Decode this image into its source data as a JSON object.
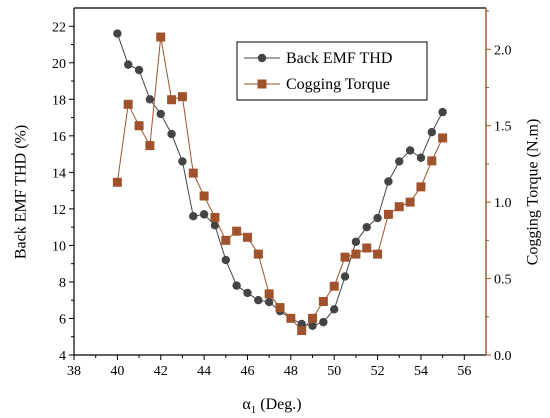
{
  "chart_data": {
    "type": "line",
    "xlabel": "α1 (Deg.)",
    "xlabel_main": "α",
    "xlabel_sub": "1",
    "xlabel_rest": " (Deg.)",
    "ylabel_left": "Back EMF THD (%)",
    "ylabel_right": "Cogging Torque  (N.m)",
    "xlim": [
      38,
      57
    ],
    "xticks": [
      "38",
      "40",
      "42",
      "44",
      "46",
      "48",
      "50",
      "52",
      "54",
      "56"
    ],
    "ylim_left": [
      4,
      23
    ],
    "yticks_left": [
      "4",
      "6",
      "8",
      "10",
      "12",
      "14",
      "16",
      "18",
      "20",
      "22"
    ],
    "ylim_right": [
      0,
      2.27
    ],
    "yticks_right": [
      "0.0",
      "0.5",
      "1.0",
      "1.5",
      "2.0"
    ],
    "legend_position": "top-right",
    "colors": {
      "left_axis": "#000000",
      "right_axis": "#a0522d"
    },
    "x": [
      40,
      40.5,
      41,
      41.5,
      42,
      42.5,
      43,
      43.5,
      44,
      44.5,
      45,
      45.5,
      46,
      46.5,
      47,
      47.5,
      48,
      48.5,
      49,
      49.5,
      50,
      50.5,
      51,
      51.5,
      52,
      52.5,
      53,
      53.5,
      54,
      54.5,
      55
    ],
    "series": [
      {
        "name": "Back EMF THD",
        "axis": "left",
        "marker": "circle",
        "color": "#444444",
        "values": [
          21.6,
          19.9,
          19.6,
          18.0,
          17.2,
          16.1,
          14.6,
          11.6,
          11.7,
          11.1,
          9.2,
          7.8,
          7.4,
          7.0,
          6.9,
          6.4,
          6.0,
          5.7,
          5.6,
          5.8,
          6.5,
          8.3,
          10.2,
          11.0,
          11.5,
          13.5,
          14.6,
          15.2,
          14.8,
          16.2,
          17.3
        ]
      },
      {
        "name": "Cogging Torque",
        "axis": "right",
        "marker": "square",
        "color": "#a0522d",
        "values": [
          1.13,
          1.64,
          1.5,
          1.37,
          2.08,
          1.67,
          1.69,
          1.19,
          1.04,
          0.9,
          0.75,
          0.81,
          0.77,
          0.66,
          0.4,
          0.31,
          0.24,
          0.16,
          0.24,
          0.35,
          0.45,
          0.64,
          0.66,
          0.7,
          0.66,
          0.92,
          0.97,
          1.0,
          1.1,
          1.27,
          1.42
        ]
      }
    ]
  }
}
